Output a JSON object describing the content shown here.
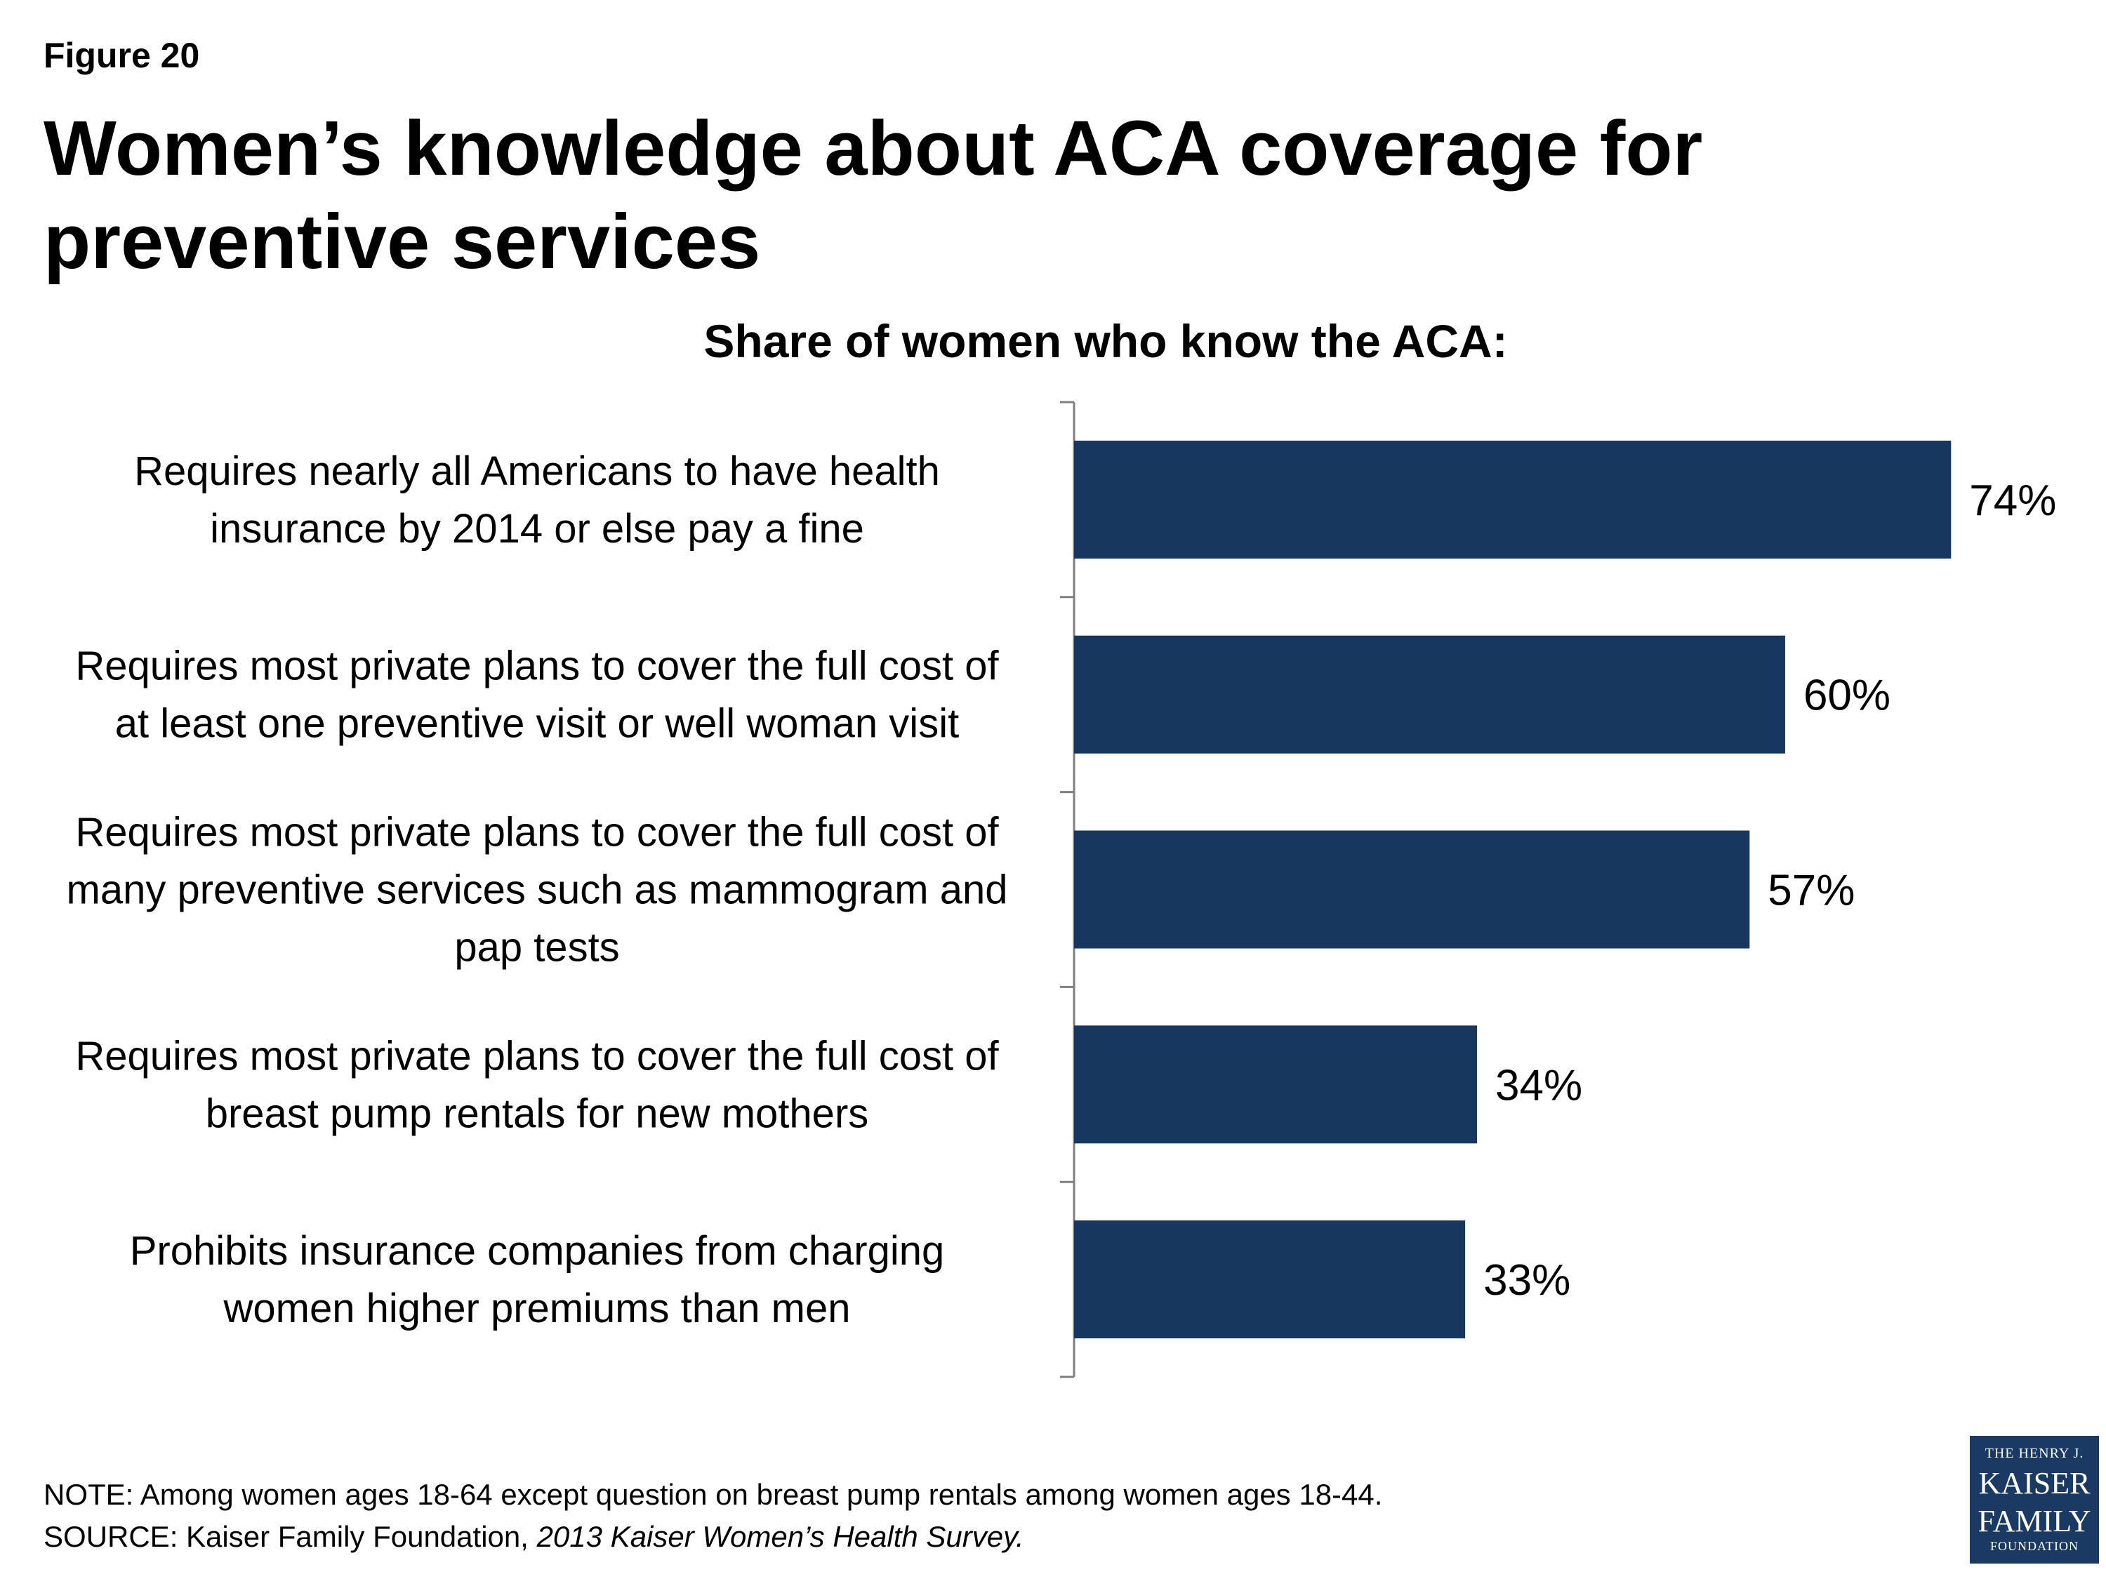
{
  "figure_label": "Figure 20",
  "title": "Women’s knowledge about ACA coverage for preventive services",
  "subtitle": "Share of women who know the ACA:",
  "chart_data": {
    "type": "bar",
    "orientation": "horizontal",
    "categories": [
      [
        "Requires nearly all Americans to have health",
        "insurance by 2014 or else pay a fine"
      ],
      [
        "Requires most private plans to cover the full cost of",
        "at least one preventive visit or well woman visit"
      ],
      [
        "Requires most private plans to cover the full cost of",
        "many preventive services such as mammogram and",
        "pap tests"
      ],
      [
        "Requires most private plans to cover the full cost of",
        "breast pump rentals for new mothers"
      ],
      [
        "Prohibits insurance companies from charging",
        "women higher premiums than men"
      ]
    ],
    "values": [
      74,
      60,
      57,
      34,
      33
    ],
    "value_labels": [
      "74%",
      "60%",
      "57%",
      "34%",
      "33%"
    ],
    "xlim": [
      0,
      85
    ],
    "bar_color": "#17375e",
    "grid": false,
    "legend": "none"
  },
  "notes": {
    "note": "NOTE: Among women ages 18-64 except question on breast pump rentals among women ages 18-44.",
    "source_prefix": "SOURCE: Kaiser Family Foundation, ",
    "source_title": "2013 Kaiser Women’s Health Survey."
  },
  "logo": {
    "line1": "THE HENRY J.",
    "line2": "KAISER",
    "line3": "FAMILY",
    "line4": "FOUNDATION"
  }
}
